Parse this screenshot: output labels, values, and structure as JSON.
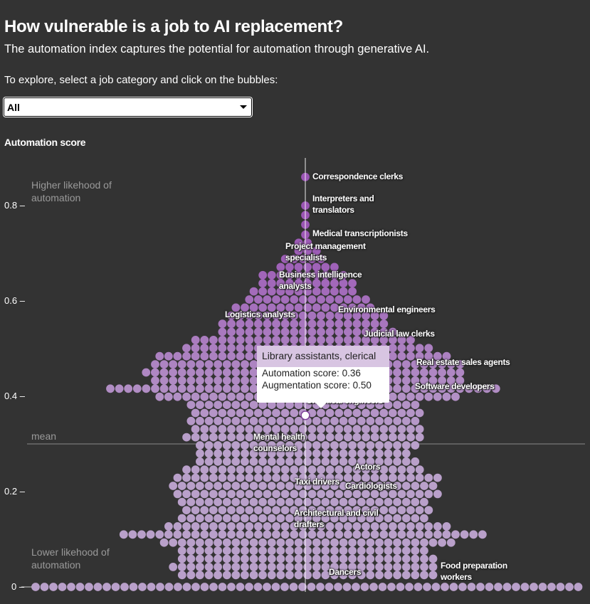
{
  "header": {
    "title": "How vulnerable is a job to AI replacement?",
    "subtitle": "The automation index captures the potential for automation through generative AI.",
    "instruction": "To explore, select a job category and click on the bubbles:"
  },
  "filter": {
    "selected": "All"
  },
  "chart_data": {
    "type": "beeswarm",
    "ylabel": "Automation score",
    "ylim": [
      0,
      0.88
    ],
    "yticks": [
      "0",
      "0.2",
      "0.4",
      "0.6",
      "0.8"
    ],
    "annotations": {
      "high": "Higher likehood of automation",
      "low": "Lower likehood of automation",
      "mean_label": "mean"
    },
    "mean": 0.3,
    "colors": {
      "background": "#333333",
      "bubble_low": "#b9a0ca",
      "bubble_high": "#9a55b4",
      "mean_line": "#8a8a8a"
    },
    "rows": [
      {
        "score": 0.0,
        "count": 62
      },
      {
        "score": 0.025,
        "count": 29
      },
      {
        "score": 0.042,
        "count": 30
      },
      {
        "score": 0.059,
        "count": 29
      },
      {
        "score": 0.076,
        "count": 28
      },
      {
        "score": 0.093,
        "count": 33
      },
      {
        "score": 0.11,
        "count": 41
      },
      {
        "score": 0.127,
        "count": 32
      },
      {
        "score": 0.144,
        "count": 28
      },
      {
        "score": 0.161,
        "count": 28
      },
      {
        "score": 0.178,
        "count": 28
      },
      {
        "score": 0.195,
        "count": 30
      },
      {
        "score": 0.212,
        "count": 30
      },
      {
        "score": 0.229,
        "count": 30
      },
      {
        "score": 0.246,
        "count": 27
      },
      {
        "score": 0.263,
        "count": 25
      },
      {
        "score": 0.28,
        "count": 24
      },
      {
        "score": 0.297,
        "count": 25
      },
      {
        "score": 0.314,
        "count": 27
      },
      {
        "score": 0.331,
        "count": 26
      },
      {
        "score": 0.348,
        "count": 26
      },
      {
        "score": 0.365,
        "count": 26
      },
      {
        "score": 0.382,
        "count": 26
      },
      {
        "score": 0.399,
        "count": 34
      },
      {
        "score": 0.416,
        "count": 44
      },
      {
        "score": 0.433,
        "count": 35
      },
      {
        "score": 0.45,
        "count": 36
      },
      {
        "score": 0.467,
        "count": 35
      },
      {
        "score": 0.484,
        "count": 33
      },
      {
        "score": 0.501,
        "count": 28
      },
      {
        "score": 0.518,
        "count": 25
      },
      {
        "score": 0.535,
        "count": 20
      },
      {
        "score": 0.552,
        "count": 19
      },
      {
        "score": 0.569,
        "count": 18
      },
      {
        "score": 0.586,
        "count": 16
      },
      {
        "score": 0.603,
        "count": 14
      },
      {
        "score": 0.62,
        "count": 12
      },
      {
        "score": 0.637,
        "count": 11
      },
      {
        "score": 0.654,
        "count": 10
      },
      {
        "score": 0.671,
        "count": 7
      },
      {
        "score": 0.688,
        "count": 5
      },
      {
        "score": 0.705,
        "count": 3
      },
      {
        "score": 0.722,
        "count": 2
      },
      {
        "score": 0.739,
        "count": 1
      },
      {
        "score": 0.76,
        "count": 1
      },
      {
        "score": 0.78,
        "count": 1
      },
      {
        "score": 0.8,
        "count": 1
      },
      {
        "score": 0.86,
        "count": 1
      }
    ],
    "labeled_jobs": [
      {
        "name": "Correspondence clerks"
      },
      {
        "name": "Interpreters and translators"
      },
      {
        "name": "Medical transcriptionists"
      },
      {
        "name": "Project management specialists"
      },
      {
        "name": "Business intelligence analysts"
      },
      {
        "name": "Logistics analysts"
      },
      {
        "name": "Environmental engineers"
      },
      {
        "name": "Judicial law clerks"
      },
      {
        "name": "Real estate sales agents"
      },
      {
        "name": "Software developers"
      },
      {
        "name": "Chemical engineers"
      },
      {
        "name": "Mental health counselors"
      },
      {
        "name": "Actors"
      },
      {
        "name": "Taxi drivers"
      },
      {
        "name": "Cardiologists"
      },
      {
        "name": "Architectural and civil drafters"
      },
      {
        "name": "Dancers"
      },
      {
        "name": "Food preparation workers"
      }
    ],
    "selected": {
      "name": "Library assistants, clerical",
      "automation_label": "Automation score:",
      "automation": "0.36",
      "augmentation_label": "Augmentation score:",
      "augmentation": "0.50"
    }
  }
}
